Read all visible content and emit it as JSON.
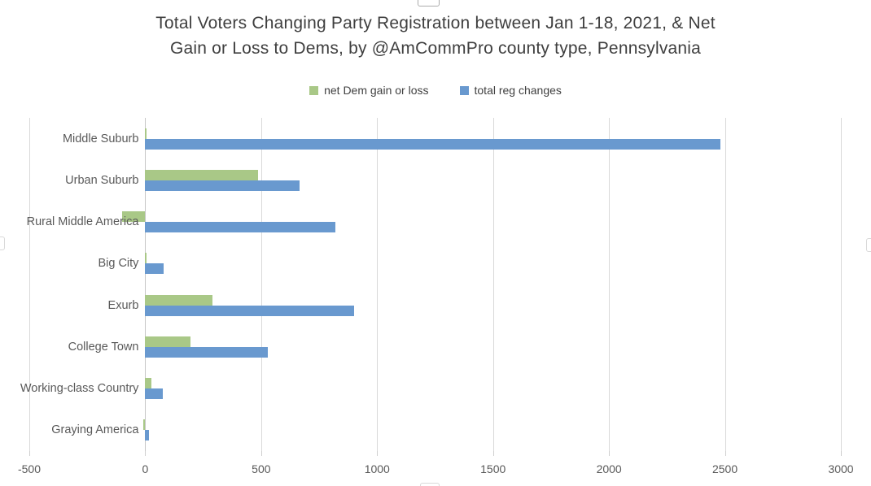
{
  "page": {
    "title_lines": [
      "Total Voters Changing Party Registration between Jan 1-18, 2021, & Net",
      "Gain or Loss to Dems, by @AmCommPro county type, Pennsylvania"
    ]
  },
  "chart_data": {
    "type": "bar",
    "orientation": "horizontal",
    "title": "Total Voters Changing Party Registration between Jan 1-18, 2021, & Net Gain or Loss to Dems, by @AmCommPro county type, Pennsylvania",
    "categories": [
      "Middle Suburb",
      "Urban Suburb",
      "Rural Middle America",
      "Big City",
      "Exurb",
      "College Town",
      "Working-class Country",
      "Graying America"
    ],
    "series": [
      {
        "name": "net Dem gain or loss",
        "color": "#a9c887",
        "values": [
          5,
          485,
          -100,
          5,
          290,
          195,
          25,
          -8
        ]
      },
      {
        "name": "total reg changes",
        "color": "#6999cf",
        "values": [
          2480,
          665,
          820,
          80,
          900,
          530,
          75,
          15
        ]
      }
    ],
    "xlim": [
      -500,
      3000
    ],
    "xticks": [
      -500,
      0,
      500,
      1000,
      1500,
      2000,
      2500,
      3000
    ],
    "xtick_labels": [
      "-500",
      "0",
      "500",
      "1000",
      "1500",
      "2000",
      "2500",
      "3000"
    ],
    "grid": "vertical",
    "legend_position": "top",
    "colors": {
      "title_text": "#3f3f3f",
      "axis_text": "#595959",
      "legend_text": "#404040",
      "gridline": "#d9d9d9",
      "zero_axis_line": "#c6c6c6",
      "background": "#ffffff"
    }
  }
}
